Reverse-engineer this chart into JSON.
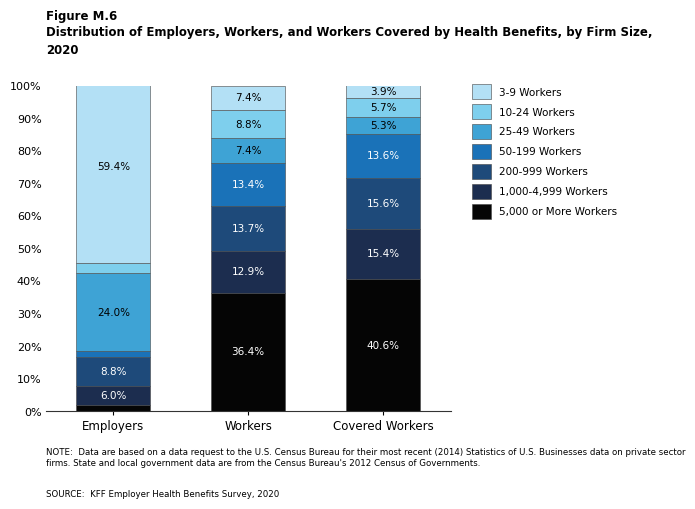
{
  "categories": [
    "Employers",
    "Workers",
    "Covered Workers"
  ],
  "series": [
    {
      "label": "5,000 or More Workers",
      "color": "#050505",
      "values": [
        1.8,
        36.4,
        40.6
      ]
    },
    {
      "label": "1,000-4,999 Workers",
      "color": "#1c2d4f",
      "values": [
        6.0,
        12.9,
        15.4
      ]
    },
    {
      "label": "200-999 Workers",
      "color": "#1e4a7a",
      "values": [
        8.8,
        13.7,
        15.6
      ]
    },
    {
      "label": "50-199 Workers",
      "color": "#1a72b8",
      "values": [
        1.8,
        13.4,
        13.6
      ]
    },
    {
      "label": "25-49 Workers",
      "color": "#3ea3d5",
      "values": [
        24.0,
        7.4,
        5.3
      ]
    },
    {
      "label": "10-24 Workers",
      "color": "#7ecfed",
      "values": [
        3.2,
        8.8,
        5.7
      ]
    },
    {
      "label": "3-9 Workers",
      "color": "#b3e0f5",
      "values": [
        59.4,
        7.4,
        3.9
      ]
    }
  ],
  "label_data": [
    [
      "",
      "6.0%",
      "8.8%",
      "",
      "24.0%",
      "",
      "59.4%"
    ],
    [
      "36.4%",
      "12.9%",
      "13.7%",
      "13.4%",
      "7.4%",
      "8.8%",
      "7.4%"
    ],
    [
      "40.6%",
      "15.4%",
      "15.6%",
      "13.6%",
      "5.3%",
      "5.7%",
      "3.9%"
    ]
  ],
  "title_line1": "Figure M.6",
  "title_line2": "Distribution of Employers, Workers, and Workers Covered by Health Benefits, by Firm Size,",
  "title_line3": "2020",
  "note": "NOTE:  Data are based on a data request to the U.S. Census Bureau for their most recent (2014) Statistics of U.S. Businesses data on private sector\nfirms. State and local government data are from the Census Bureau's 2012 Census of Governments.",
  "source": "SOURCE:  KFF Employer Health Benefits Survey, 2020",
  "ylim": [
    0,
    100
  ],
  "yticks": [
    0,
    10,
    20,
    30,
    40,
    50,
    60,
    70,
    80,
    90,
    100
  ],
  "bar_width": 0.55,
  "legend_labels": [
    "3-9 Workers",
    "10-24 Workers",
    "25-49 Workers",
    "50-199 Workers",
    "200-999 Workers",
    "1,000-4,999 Workers",
    "5,000 or More Workers"
  ],
  "legend_colors": [
    "#b3e0f5",
    "#7ecfed",
    "#3ea3d5",
    "#1a72b8",
    "#1e4a7a",
    "#1c2d4f",
    "#050505"
  ],
  "dark_colors": [
    "#050505",
    "#1c2d4f",
    "#1e4a7a",
    "#1a72b8"
  ]
}
